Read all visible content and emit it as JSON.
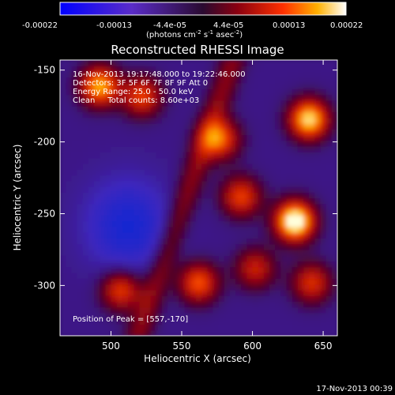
{
  "colorbar": {
    "ticks": [
      "-0.00022",
      "-0.00013",
      "-4.4e-05",
      "4.4e-05",
      "0.00013",
      "0.00022"
    ],
    "units_label": "(photons cm",
    "units_exp1": "-2",
    "units_mid": " s",
    "units_exp2": "-1",
    "units_end": " asec",
    "units_exp3": "-2",
    "units_close": ")"
  },
  "chart_data": {
    "type": "heatmap",
    "title": "Reconstructed RHESSI Image",
    "xlabel": "Heliocentric X (arcsec)",
    "ylabel": "Heliocentric Y (arcsec)",
    "xlim": [
      464,
      660
    ],
    "ylim": [
      -335,
      -143
    ],
    "xticks": [
      500,
      550,
      600,
      650
    ],
    "yticks": [
      -150,
      -200,
      -250,
      -300
    ],
    "color_range": [
      -0.00022,
      0.00022
    ],
    "annotations": [
      "16-Nov-2013 19:17:48.000 to 19:22:46.000",
      "Detectors: 3F 5F 6F 7F 8F 9F Att 0",
      "Energy Range: 25.0 - 50.0 keV",
      "Clean     Total counts: 8.60e+03"
    ],
    "peak_label": "Position of Peak = [557,-170]",
    "peak": [
      557,
      -170
    ],
    "hotspots": [
      {
        "x": 628,
        "y": -257,
        "intensity": 1.0
      },
      {
        "x": 638,
        "y": -186,
        "intensity": 0.85
      },
      {
        "x": 490,
        "y": -163,
        "intensity": 0.75
      },
      {
        "x": 520,
        "y": -170,
        "intensity": 0.55
      },
      {
        "x": 575,
        "y": -200,
        "intensity": 0.6
      },
      {
        "x": 590,
        "y": -240,
        "intensity": 0.55
      },
      {
        "x": 560,
        "y": -300,
        "intensity": 0.6
      },
      {
        "x": 505,
        "y": -305,
        "intensity": 0.55
      },
      {
        "x": 640,
        "y": -300,
        "intensity": 0.5
      },
      {
        "x": 600,
        "y": -290,
        "intensity": 0.45
      }
    ]
  },
  "footer": {
    "timestamp": "17-Nov-2013 00:39"
  }
}
